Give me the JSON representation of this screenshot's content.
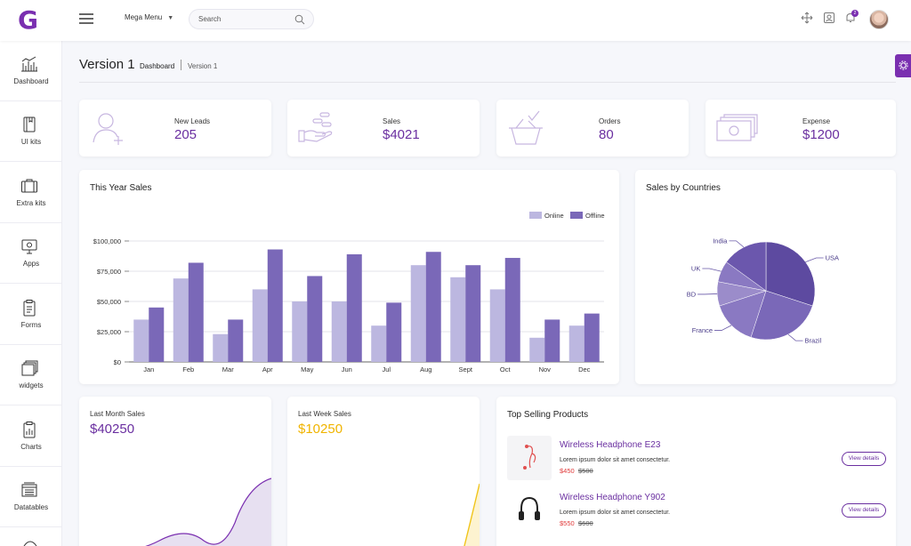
{
  "header": {
    "logo": "G",
    "mega_menu": "Mega Menu",
    "search_placeholder": "Search",
    "notification_count": "2"
  },
  "sidebar": {
    "items": [
      {
        "label": "Dashboard",
        "icon": "bar-chart-icon"
      },
      {
        "label": "UI kits",
        "icon": "book-icon"
      },
      {
        "label": "Extra kits",
        "icon": "briefcase-icon"
      },
      {
        "label": "Apps",
        "icon": "monitor-icon"
      },
      {
        "label": "Forms",
        "icon": "clipboard-icon"
      },
      {
        "label": "widgets",
        "icon": "layers-icon"
      },
      {
        "label": "Charts",
        "icon": "clipboard-chart-icon"
      },
      {
        "label": "Datatables",
        "icon": "table-icon"
      }
    ]
  },
  "page": {
    "title": "Version 1",
    "breadcrumb": [
      "Dashboard",
      "Version 1"
    ]
  },
  "stats": [
    {
      "label": "New Leads",
      "value": "205",
      "icon": "user-add-icon"
    },
    {
      "label": "Sales",
      "value": "$4021",
      "icon": "hand-coins-icon"
    },
    {
      "label": "Orders",
      "value": "80",
      "icon": "basket-icon"
    },
    {
      "label": "Expense",
      "value": "$1200",
      "icon": "cash-icon"
    }
  ],
  "colors": {
    "brand": "#7a2fb0",
    "online": "#bcb7e0",
    "offline": "#7a68b8",
    "price": "#e03b3b",
    "week_line": "#f0c419"
  },
  "sales_chart": {
    "title": "This Year Sales"
  },
  "countries_chart": {
    "title": "Sales by Countries"
  },
  "last_month": {
    "label": "Last Month Sales",
    "value": "$40250"
  },
  "last_week": {
    "label": "Last Week Sales",
    "value": "$10250"
  },
  "top_products": {
    "title": "Top Selling Products",
    "items": [
      {
        "name": "Wireless Headphone E23",
        "desc": "Lorem ipsum dolor sit amet consectetur.",
        "price": "$450",
        "old_price": "$500",
        "button": "View details"
      },
      {
        "name": "Wireless Headphone Y902",
        "desc": "Lorem ipsum dolor sit amet consectetur.",
        "price": "$550",
        "old_price": "$600",
        "button": "View details"
      }
    ]
  },
  "chart_data": [
    {
      "type": "bar",
      "title": "This Year Sales",
      "categories": [
        "Jan",
        "Feb",
        "Mar",
        "Apr",
        "May",
        "Jun",
        "Jul",
        "Aug",
        "Sept",
        "Oct",
        "Nov",
        "Dec"
      ],
      "series": [
        {
          "name": "Online",
          "values": [
            35000,
            69000,
            23000,
            60000,
            50000,
            50000,
            30000,
            80000,
            70000,
            60000,
            20000,
            30000
          ]
        },
        {
          "name": "Offline",
          "values": [
            45000,
            82000,
            35000,
            93000,
            71000,
            89000,
            49000,
            91000,
            80000,
            86000,
            35000,
            40000
          ]
        }
      ],
      "yticks": [
        "$0",
        "$25,000",
        "$50,000",
        "$75,000",
        "$100,000"
      ],
      "ylim": [
        0,
        100000
      ],
      "grid": true,
      "legend": "top-right"
    },
    {
      "type": "pie",
      "title": "Sales by Countries",
      "labels": [
        "USA",
        "Brazil",
        "France",
        "BD",
        "UK",
        "India"
      ],
      "values": [
        30,
        25,
        15,
        8,
        7,
        15
      ]
    }
  ]
}
